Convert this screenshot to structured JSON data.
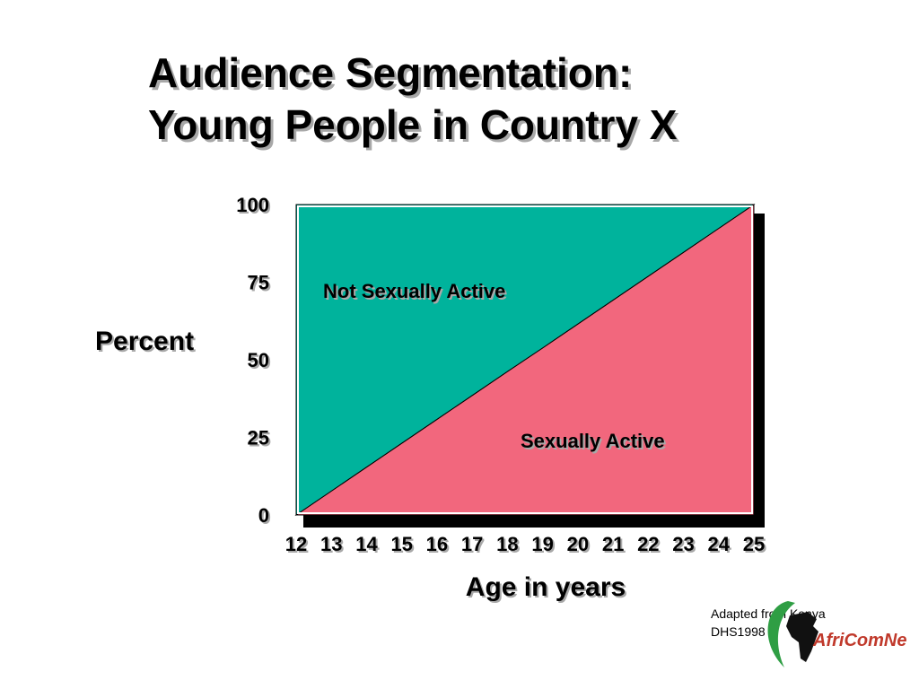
{
  "title": {
    "line1": "Audience Segmentation:",
    "line2": "Young People in Country X"
  },
  "chart_data": {
    "type": "area",
    "ylabel": "Percent",
    "xlabel": "Age in years",
    "x": [
      12,
      13,
      14,
      15,
      16,
      17,
      18,
      19,
      20,
      21,
      22,
      23,
      24,
      25
    ],
    "ylim": [
      0,
      100
    ],
    "yticks": [
      0,
      25,
      50,
      75,
      100
    ],
    "series": [
      {
        "name": "Sexually Active",
        "values": [
          0,
          7.7,
          15.4,
          23.1,
          30.8,
          38.5,
          46.2,
          53.8,
          61.5,
          69.2,
          76.9,
          84.6,
          92.3,
          100
        ],
        "color": "#f2677d"
      },
      {
        "name": "Not Sexually Active",
        "values": [
          100,
          92.3,
          84.6,
          76.9,
          69.2,
          61.5,
          53.8,
          46.2,
          38.5,
          30.8,
          23.1,
          15.4,
          7.7,
          0
        ],
        "color": "#00b39c"
      }
    ],
    "stacked": true,
    "grid": false
  },
  "source": {
    "line1": "Adapted from Kenya",
    "line2": "DHS1998"
  },
  "logo": {
    "text": "AfriComNet"
  }
}
